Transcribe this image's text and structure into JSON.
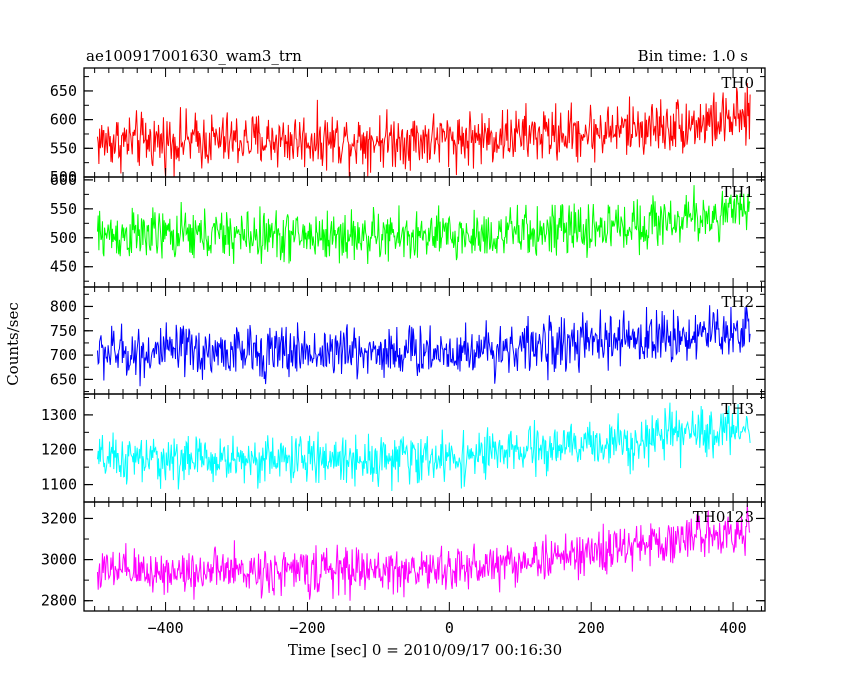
{
  "header": {
    "title": "ae100917001630_wam3_trn",
    "bin_time": "Bin time: 1.0 s"
  },
  "chart_data": {
    "type": "line",
    "title": "ae100917001630_wam3_trn",
    "subtitle": "Bin time: 1.0 s",
    "xlabel": "Time [sec] 0 = 2010/09/17 00:16:30",
    "ylabel": "Counts/sec",
    "xlim": [
      -515,
      445
    ],
    "x_ticks": [
      -400,
      -200,
      0,
      200,
      400
    ],
    "x_range_data": [
      -496,
      424
    ],
    "x_step": 1,
    "series": [
      {
        "name": "TH0",
        "color": "#ff0000",
        "ylim": [
          500,
          690
        ],
        "y_ticks": [
          500,
          550,
          600,
          650
        ],
        "trend": {
          "x": [
            -496,
            0,
            200,
            424
          ],
          "y": [
            562,
            566,
            578,
            602
          ]
        },
        "noise": 24
      },
      {
        "name": "TH1",
        "color": "#00ff00",
        "ylim": [
          415,
          605
        ],
        "y_ticks": [
          450,
          500,
          550,
          600
        ],
        "trend": {
          "x": [
            -496,
            0,
            200,
            424
          ],
          "y": [
            505,
            502,
            515,
            545
          ]
        },
        "noise": 22
      },
      {
        "name": "TH2",
        "color": "#0000ff",
        "ylim": [
          620,
          840
        ],
        "y_ticks": [
          650,
          700,
          750,
          800
        ],
        "trend": {
          "x": [
            -496,
            0,
            200,
            424
          ],
          "y": [
            705,
            708,
            725,
            752
          ]
        },
        "noise": 27
      },
      {
        "name": "TH3",
        "color": "#00ffff",
        "ylim": [
          1050,
          1360
        ],
        "y_ticks": [
          1100,
          1200,
          1300
        ],
        "trend": {
          "x": [
            -496,
            0,
            200,
            424
          ],
          "y": [
            1170,
            1175,
            1215,
            1265
          ]
        },
        "noise": 34
      },
      {
        "name": "TH0123",
        "color": "#ff00ff",
        "ylim": [
          2750,
          3280
        ],
        "y_ticks": [
          2800,
          3000,
          3200
        ],
        "trend": {
          "x": [
            -496,
            0,
            200,
            424
          ],
          "y": [
            2940,
            2950,
            3030,
            3155
          ]
        },
        "noise": 55
      }
    ],
    "grid": false,
    "legend": "panel labels top-right"
  }
}
